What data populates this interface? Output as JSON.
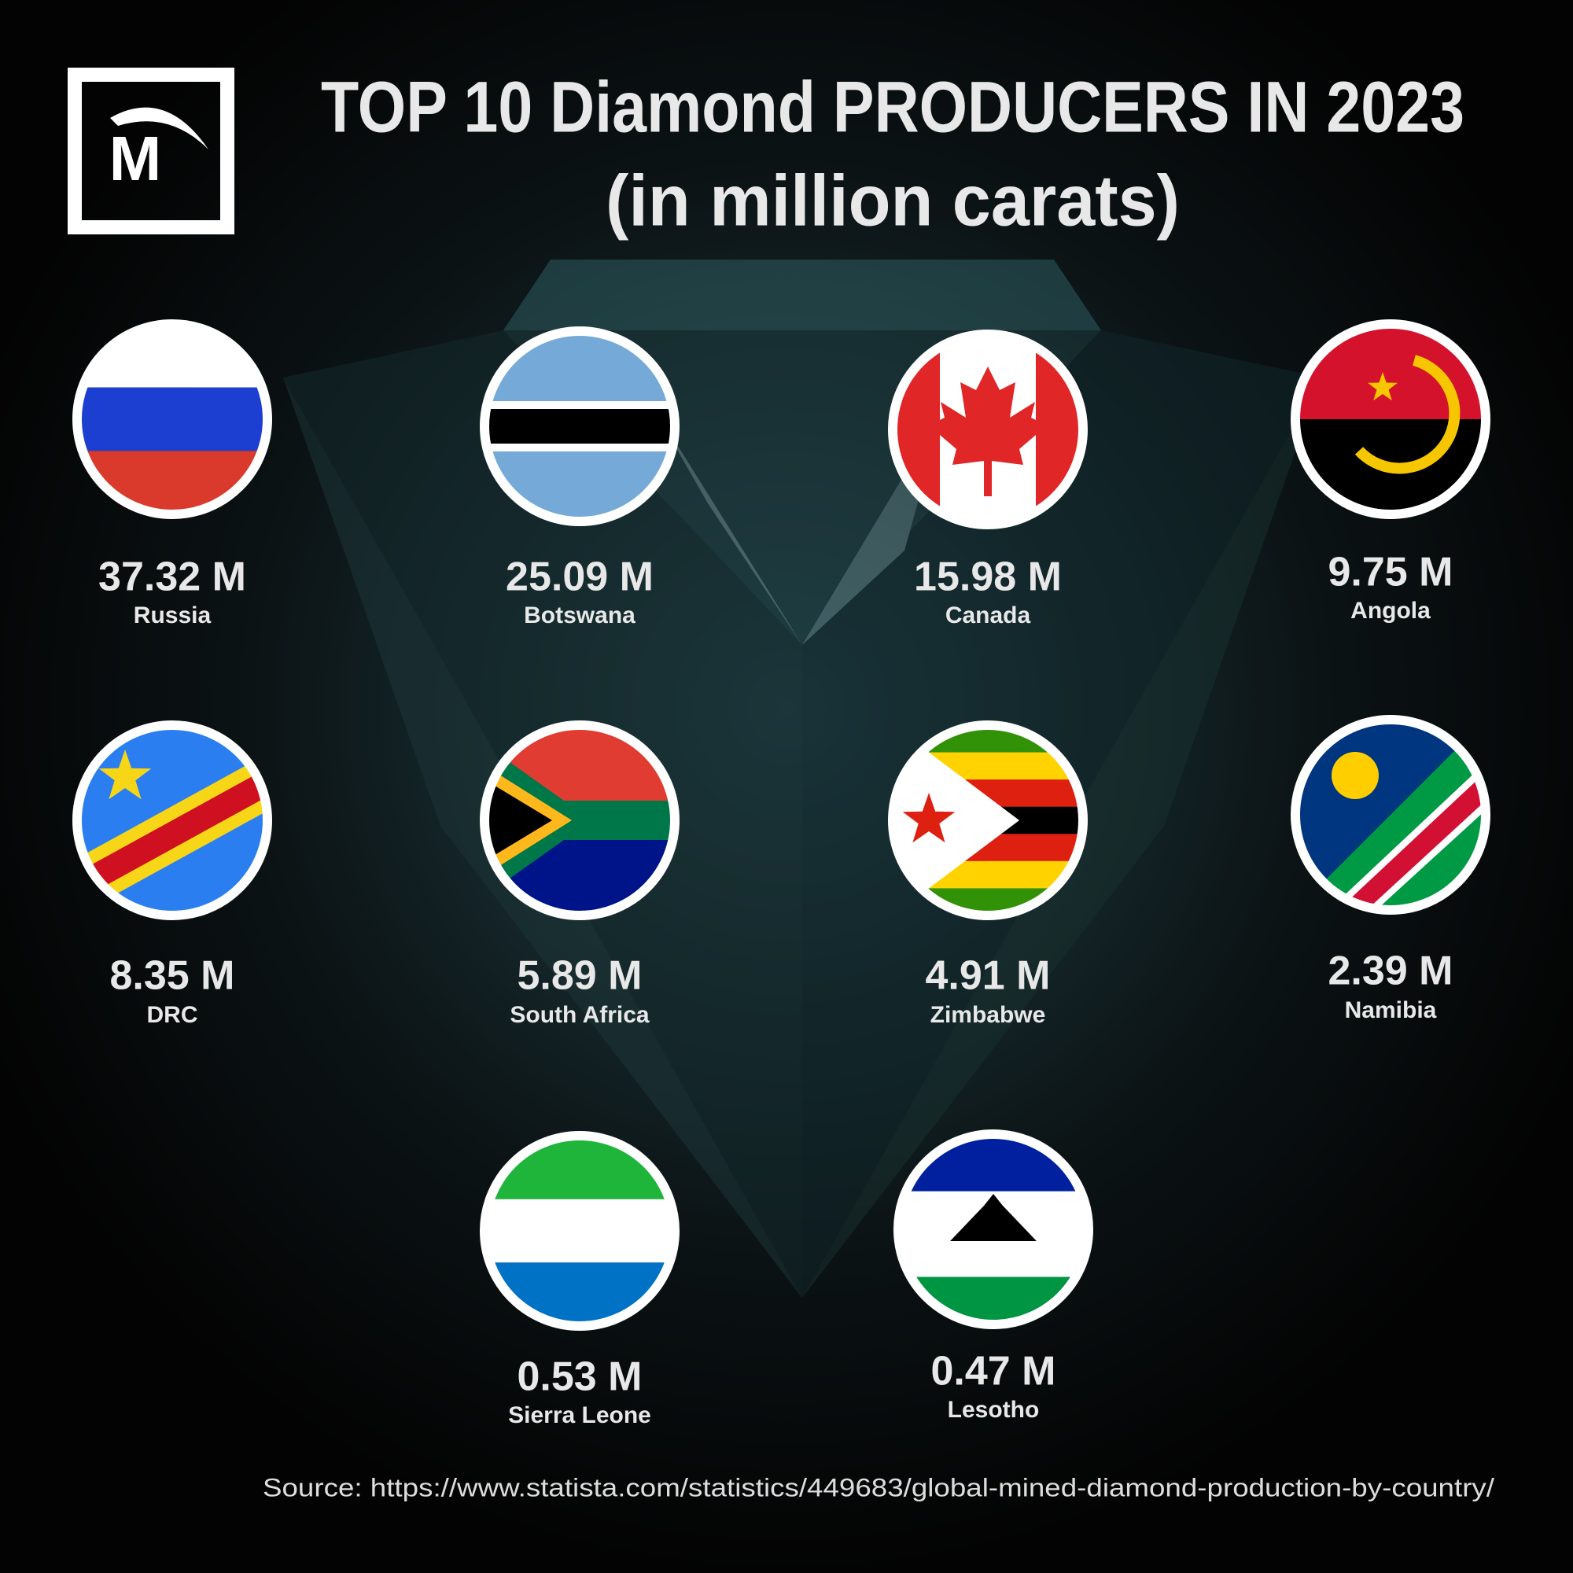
{
  "logo": {
    "text": "M"
  },
  "header": {
    "title": "TOP 10 Diamond PRODUCERS IN 2023",
    "subtitle": "(in million carats)"
  },
  "producers": [
    {
      "value": "37.32 M",
      "country": "Russia"
    },
    {
      "value": "25.09 M",
      "country": "Botswana"
    },
    {
      "value": "15.98 M",
      "country": "Canada"
    },
    {
      "value": "9.75 M",
      "country": "Angola"
    },
    {
      "value": "8.35 M",
      "country": "DRC"
    },
    {
      "value": "5.89 M",
      "country": "South Africa"
    },
    {
      "value": "4.91 M",
      "country": "Zimbabwe"
    },
    {
      "value": "2.39 M",
      "country": "Namibia"
    },
    {
      "value": "0.53 M",
      "country": "Sierra Leone"
    },
    {
      "value": "0.47 M",
      "country": "Lesotho"
    }
  ],
  "source": "Source: https://www.statista.com/statistics/449683/global-mined-diamond-production-by-country/"
}
